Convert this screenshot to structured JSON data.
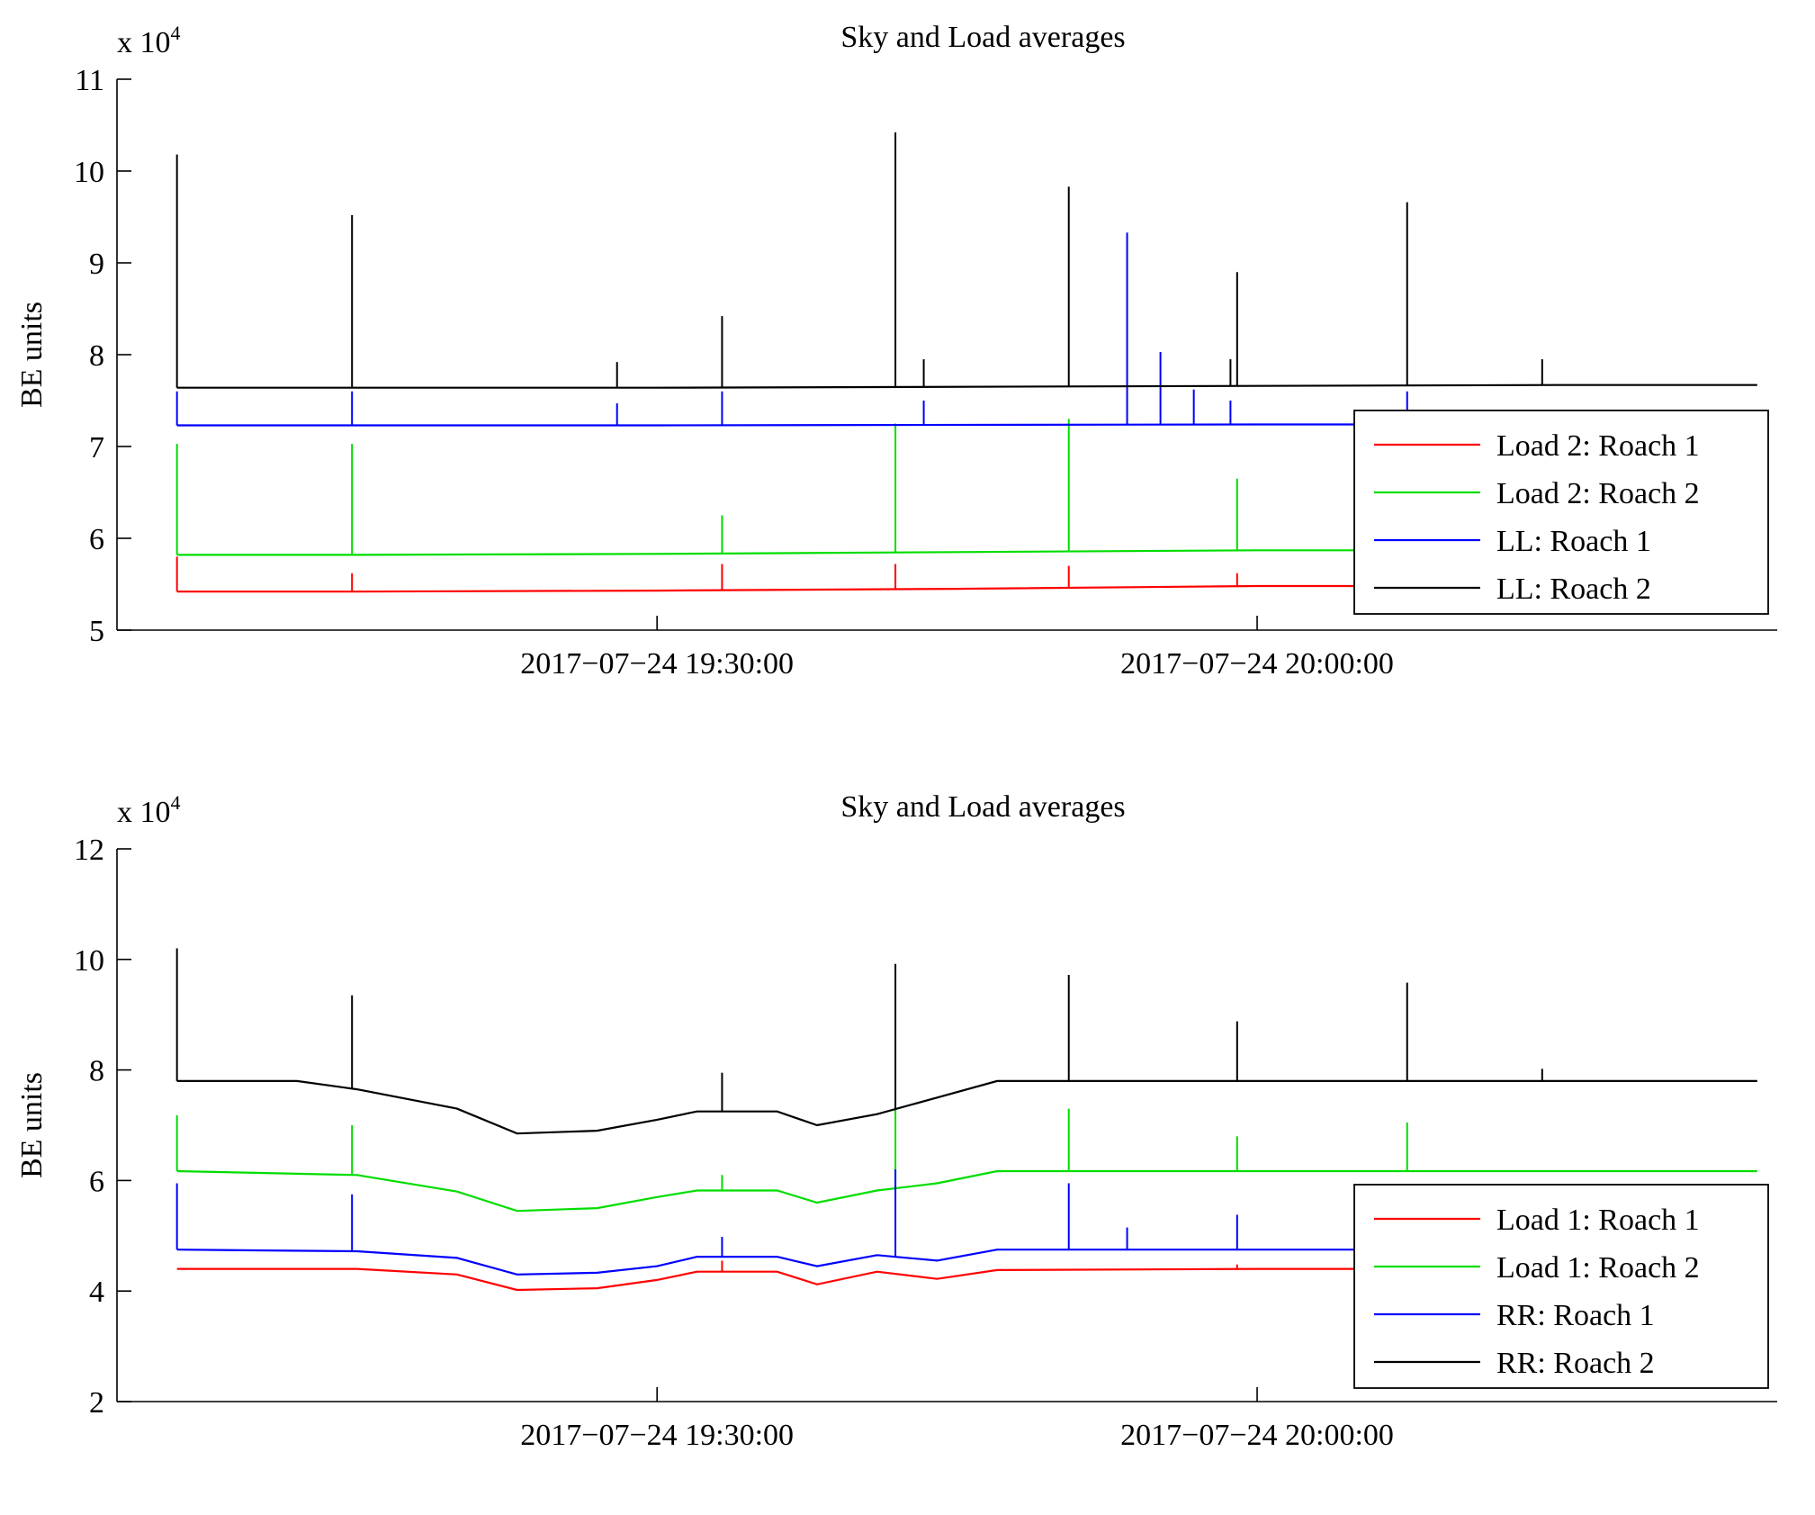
{
  "chart_data": [
    {
      "type": "line",
      "title": "Sky and Load averages",
      "ylabel": "BE units",
      "y_multiplier": "x 10",
      "y_multiplier_exp": "4",
      "ylim": [
        5,
        11
      ],
      "yticks": [
        5,
        6,
        7,
        8,
        9,
        10,
        11
      ],
      "ytick_labels": [
        "5",
        "6",
        "7",
        "8",
        "9",
        "10",
        "11"
      ],
      "xlim": [
        "2017-07-24 19:03:00",
        "2017-07-24 20:26:00"
      ],
      "xticks": [
        "2017-07-24 19:30:00",
        "2017-07-24 20:00:00"
      ],
      "xtick_labels": [
        "2017−07−24 19:30:00",
        "2017−07−24 20:00:00"
      ],
      "legend": "right-center",
      "series": [
        {
          "name": "Load 2: Roach 1",
          "color": "#ff0000",
          "x": [
            "2017-07-24 19:06:00",
            "2017-07-24 19:15:00",
            "2017-07-24 19:30:00",
            "2017-07-24 19:45:00",
            "2017-07-24 20:00:00",
            "2017-07-24 20:05:00"
          ],
          "y": [
            5.42,
            5.42,
            5.43,
            5.45,
            5.48,
            5.48
          ],
          "spikes": [
            [
              "2017-07-24 19:06:00",
              5.8
            ],
            [
              "2017-07-24 19:14:45",
              5.62
            ],
            [
              "2017-07-24 19:33:15",
              5.72
            ],
            [
              "2017-07-24 19:41:55",
              5.72
            ],
            [
              "2017-07-24 19:50:35",
              5.7
            ],
            [
              "2017-07-24 19:59:00",
              5.62
            ]
          ]
        },
        {
          "name": "Load 2: Roach 2",
          "color": "#00dd00",
          "x": [
            "2017-07-24 19:06:00",
            "2017-07-24 19:15:00",
            "2017-07-24 19:30:00",
            "2017-07-24 19:45:00",
            "2017-07-24 20:00:00",
            "2017-07-24 20:05:00"
          ],
          "y": [
            5.82,
            5.82,
            5.83,
            5.85,
            5.87,
            5.87
          ],
          "spikes": [
            [
              "2017-07-24 19:06:00",
              7.03
            ],
            [
              "2017-07-24 19:14:45",
              7.03
            ],
            [
              "2017-07-24 19:33:15",
              6.25
            ],
            [
              "2017-07-24 19:41:55",
              7.25
            ],
            [
              "2017-07-24 19:50:35",
              7.3
            ],
            [
              "2017-07-24 19:59:00",
              6.65
            ]
          ]
        },
        {
          "name": "LL: Roach 1",
          "color": "#0000ff",
          "x": [
            "2017-07-24 19:06:00",
            "2017-07-24 19:30:00",
            "2017-07-24 20:00:00",
            "2017-07-24 20:05:00"
          ],
          "y": [
            7.23,
            7.23,
            7.24,
            7.24
          ],
          "spikes": [
            [
              "2017-07-24 19:06:00",
              7.6
            ],
            [
              "2017-07-24 19:14:45",
              7.6
            ],
            [
              "2017-07-24 19:28:00",
              7.47
            ],
            [
              "2017-07-24 19:33:15",
              7.6
            ],
            [
              "2017-07-24 19:43:20",
              7.5
            ],
            [
              "2017-07-24 19:53:30",
              9.33
            ],
            [
              "2017-07-24 19:55:10",
              8.03
            ],
            [
              "2017-07-24 19:56:50",
              7.62
            ],
            [
              "2017-07-24 19:58:40",
              7.5
            ],
            [
              "2017-07-24 20:07:30",
              7.6
            ]
          ]
        },
        {
          "name": "LL: Roach 2",
          "color": "#000000",
          "x": [
            "2017-07-24 19:06:00",
            "2017-07-24 19:30:00",
            "2017-07-24 20:00:00",
            "2017-07-24 20:15:00",
            "2017-07-24 20:25:00"
          ],
          "y": [
            7.64,
            7.64,
            7.66,
            7.67,
            7.67
          ],
          "spikes": [
            [
              "2017-07-24 19:06:00",
              10.18
            ],
            [
              "2017-07-24 19:14:45",
              9.52
            ],
            [
              "2017-07-24 19:28:00",
              7.92
            ],
            [
              "2017-07-24 19:33:15",
              8.42
            ],
            [
              "2017-07-24 19:41:55",
              10.42
            ],
            [
              "2017-07-24 19:43:20",
              7.95
            ],
            [
              "2017-07-24 19:50:35",
              9.83
            ],
            [
              "2017-07-24 19:58:40",
              7.95
            ],
            [
              "2017-07-24 19:59:00",
              8.9
            ],
            [
              "2017-07-24 20:07:30",
              9.66
            ],
            [
              "2017-07-24 20:14:15",
              7.95
            ]
          ]
        }
      ]
    },
    {
      "type": "line",
      "title": "Sky and Load averages",
      "ylabel": "BE units",
      "y_multiplier": "x 10",
      "y_multiplier_exp": "4",
      "ylim": [
        2,
        12
      ],
      "yticks": [
        2,
        4,
        6,
        8,
        10,
        12
      ],
      "ytick_labels": [
        "2",
        "4",
        "6",
        "8",
        "10",
        "12"
      ],
      "xlim": [
        "2017-07-24 19:03:00",
        "2017-07-24 20:26:00"
      ],
      "xticks": [
        "2017-07-24 19:30:00",
        "2017-07-24 20:00:00"
      ],
      "xtick_labels": [
        "2017−07−24 19:30:00",
        "2017−07−24 20:00:00"
      ],
      "legend": "right-center",
      "series": [
        {
          "name": "Load 1: Roach 1",
          "color": "#ff0000",
          "x": [
            "2017-07-24 19:06:00",
            "2017-07-24 19:15:00",
            "2017-07-24 19:20:00",
            "2017-07-24 19:23:00",
            "2017-07-24 19:27:00",
            "2017-07-24 19:30:00",
            "2017-07-24 19:32:00",
            "2017-07-24 19:36:00",
            "2017-07-24 19:38:00",
            "2017-07-24 19:41:00",
            "2017-07-24 19:44:00",
            "2017-07-24 19:47:00",
            "2017-07-24 20:00:00",
            "2017-07-24 20:25:00"
          ],
          "y": [
            4.4,
            4.4,
            4.3,
            4.02,
            4.05,
            4.2,
            4.35,
            4.35,
            4.12,
            4.35,
            4.22,
            4.38,
            4.4,
            4.4
          ],
          "spikes": [
            [
              "2017-07-24 19:33:15",
              4.55
            ],
            [
              "2017-07-24 19:59:00",
              4.48
            ]
          ]
        },
        {
          "name": "Load 1: Roach 2",
          "color": "#00dd00",
          "x": [
            "2017-07-24 19:06:00",
            "2017-07-24 19:15:00",
            "2017-07-24 19:20:00",
            "2017-07-24 19:23:00",
            "2017-07-24 19:27:00",
            "2017-07-24 19:30:00",
            "2017-07-24 19:32:00",
            "2017-07-24 19:36:00",
            "2017-07-24 19:38:00",
            "2017-07-24 19:41:00",
            "2017-07-24 19:44:00",
            "2017-07-24 19:47:00",
            "2017-07-24 20:00:00",
            "2017-07-24 20:25:00"
          ],
          "y": [
            6.17,
            6.1,
            5.8,
            5.45,
            5.5,
            5.7,
            5.82,
            5.82,
            5.6,
            5.82,
            5.95,
            6.17,
            6.17,
            6.17
          ],
          "spikes": [
            [
              "2017-07-24 19:06:00",
              7.18
            ],
            [
              "2017-07-24 19:14:45",
              7.0
            ],
            [
              "2017-07-24 19:33:15",
              6.1
            ],
            [
              "2017-07-24 19:41:55",
              7.3
            ],
            [
              "2017-07-24 19:50:35",
              7.3
            ],
            [
              "2017-07-24 19:59:00",
              6.8
            ],
            [
              "2017-07-24 20:07:30",
              7.05
            ]
          ]
        },
        {
          "name": "RR: Roach 1",
          "color": "#0000ff",
          "x": [
            "2017-07-24 19:06:00",
            "2017-07-24 19:15:00",
            "2017-07-24 19:20:00",
            "2017-07-24 19:23:00",
            "2017-07-24 19:27:00",
            "2017-07-24 19:30:00",
            "2017-07-24 19:32:00",
            "2017-07-24 19:36:00",
            "2017-07-24 19:38:00",
            "2017-07-24 19:41:00",
            "2017-07-24 19:44:00",
            "2017-07-24 19:47:00",
            "2017-07-24 20:00:00",
            "2017-07-24 20:25:00"
          ],
          "y": [
            4.75,
            4.72,
            4.6,
            4.3,
            4.33,
            4.45,
            4.62,
            4.62,
            4.45,
            4.65,
            4.55,
            4.75,
            4.75,
            4.75
          ],
          "spikes": [
            [
              "2017-07-24 19:06:00",
              5.95
            ],
            [
              "2017-07-24 19:14:45",
              5.75
            ],
            [
              "2017-07-24 19:33:15",
              4.98
            ],
            [
              "2017-07-24 19:41:55",
              6.2
            ],
            [
              "2017-07-24 19:50:35",
              5.95
            ],
            [
              "2017-07-24 19:53:30",
              5.15
            ],
            [
              "2017-07-24 19:59:00",
              5.38
            ]
          ]
        },
        {
          "name": "RR: Roach 2",
          "color": "#000000",
          "x": [
            "2017-07-24 19:06:00",
            "2017-07-24 19:12:00",
            "2017-07-24 19:15:00",
            "2017-07-24 19:20:00",
            "2017-07-24 19:23:00",
            "2017-07-24 19:27:00",
            "2017-07-24 19:30:00",
            "2017-07-24 19:32:00",
            "2017-07-24 19:36:00",
            "2017-07-24 19:38:00",
            "2017-07-24 19:41:00",
            "2017-07-24 19:44:00",
            "2017-07-24 19:47:00",
            "2017-07-24 20:00:00",
            "2017-07-24 20:25:00"
          ],
          "y": [
            7.8,
            7.8,
            7.65,
            7.3,
            6.85,
            6.9,
            7.1,
            7.25,
            7.25,
            7.0,
            7.2,
            7.5,
            7.8,
            7.8,
            7.8
          ],
          "spikes": [
            [
              "2017-07-24 19:06:00",
              10.2
            ],
            [
              "2017-07-24 19:14:45",
              9.35
            ],
            [
              "2017-07-24 19:33:15",
              7.95
            ],
            [
              "2017-07-24 19:41:55",
              9.92
            ],
            [
              "2017-07-24 19:50:35",
              9.72
            ],
            [
              "2017-07-24 19:59:00",
              8.88
            ],
            [
              "2017-07-24 20:07:30",
              9.58
            ],
            [
              "2017-07-24 20:14:15",
              8.02
            ]
          ]
        }
      ]
    }
  ]
}
